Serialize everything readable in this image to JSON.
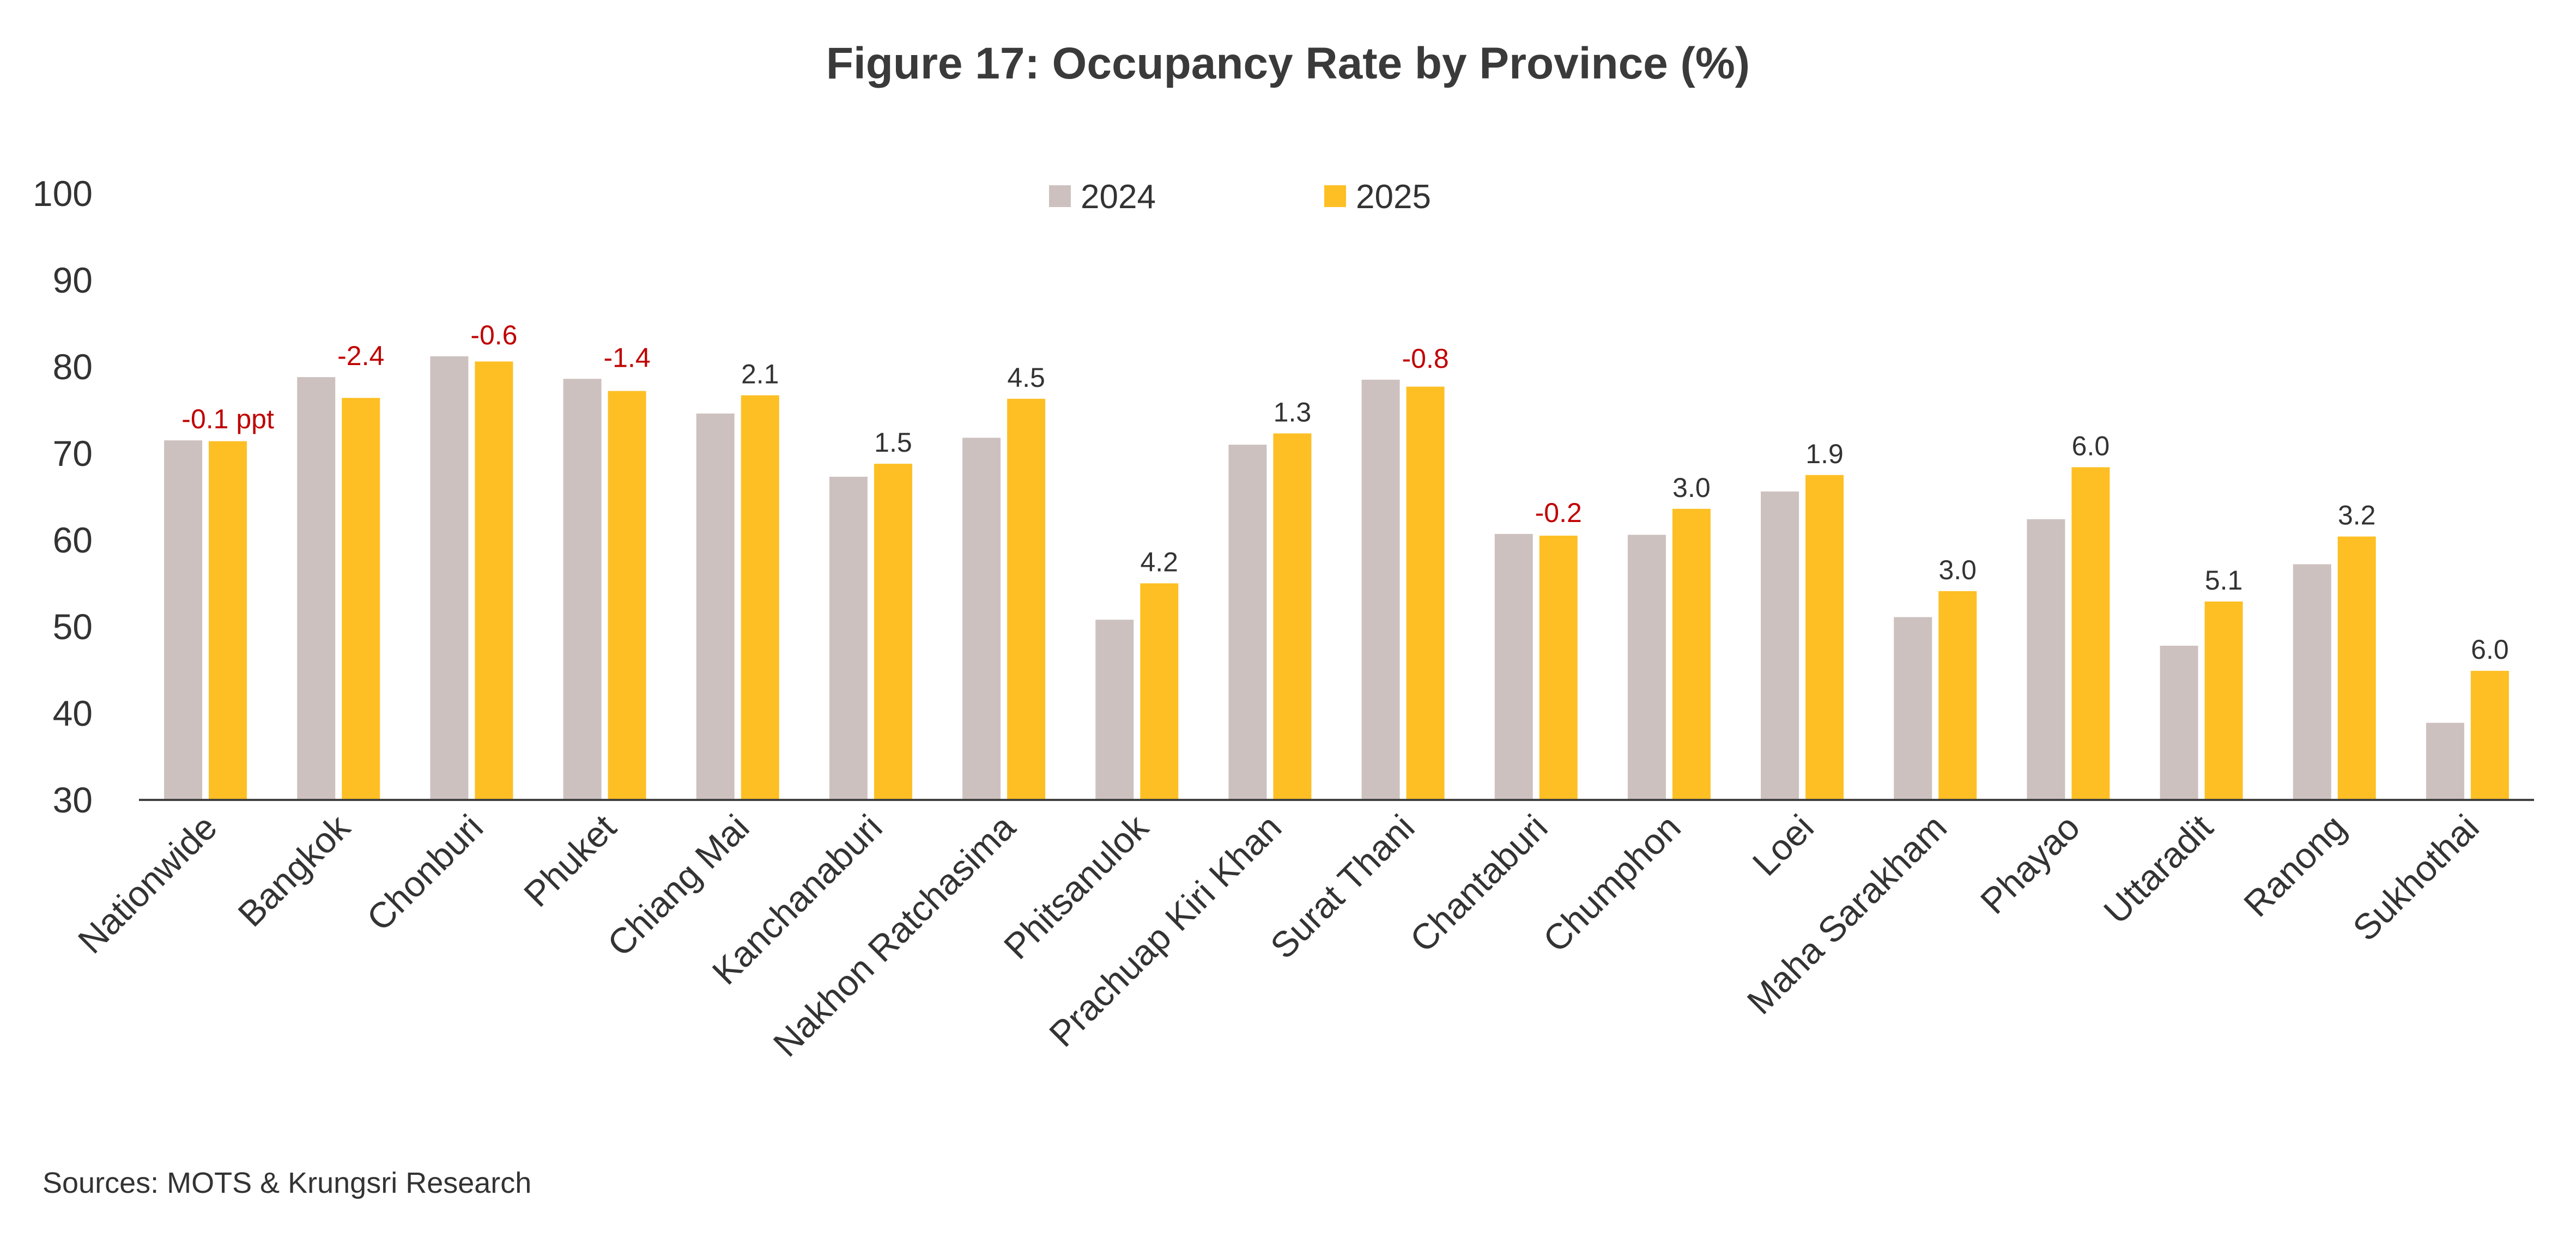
{
  "chart_data": {
    "type": "bar",
    "title": "Figure 17: Occupancy Rate by Province (%)",
    "xlabel": "",
    "ylabel": "",
    "ylim": [
      30,
      100
    ],
    "yticks": [
      30,
      40,
      50,
      60,
      70,
      80,
      90,
      100
    ],
    "grid": false,
    "legend_position": "top-center",
    "categories": [
      "Nationwide",
      "Bangkok",
      "Chonburi",
      "Phuket",
      "Chiang Mai",
      "Kanchanaburi",
      "Nakhon Ratchasima",
      "Phitsanulok",
      "Prachuap Kiri Khan",
      "Surat Thani",
      "Chantaburi",
      "Chumphon",
      "Loei",
      "Maha Sarakham",
      "Phayao",
      "Uttaradit",
      "Ranong",
      "Sukhothai"
    ],
    "series": [
      {
        "name": "2024",
        "color": "#cdc1bf",
        "values": [
          71.5,
          78.8,
          81.2,
          78.6,
          74.6,
          67.3,
          71.8,
          50.8,
          71.0,
          78.5,
          60.7,
          60.6,
          65.6,
          51.1,
          62.4,
          47.8,
          57.2,
          38.9
        ]
      },
      {
        "name": "2025",
        "color": "#fdbf24",
        "values": [
          71.4,
          76.4,
          80.6,
          77.2,
          76.7,
          68.8,
          76.3,
          55.0,
          72.3,
          77.7,
          60.5,
          63.6,
          67.5,
          54.1,
          68.4,
          52.9,
          60.4,
          44.9
        ]
      }
    ],
    "annotations": [
      "-0.1 ppt",
      "-2.4",
      "-0.6",
      "-1.4",
      "2.1",
      "1.5",
      "4.5",
      "4.2",
      "1.3",
      "-0.8",
      "-0.2",
      "3.0",
      "1.9",
      "3.0",
      "6.0",
      "5.1",
      "3.2",
      "6.0"
    ],
    "annotation_colors": {
      "negative": "#c00000",
      "positive": "#333333"
    }
  },
  "sources": "Sources: MOTS & Krungsri Research"
}
